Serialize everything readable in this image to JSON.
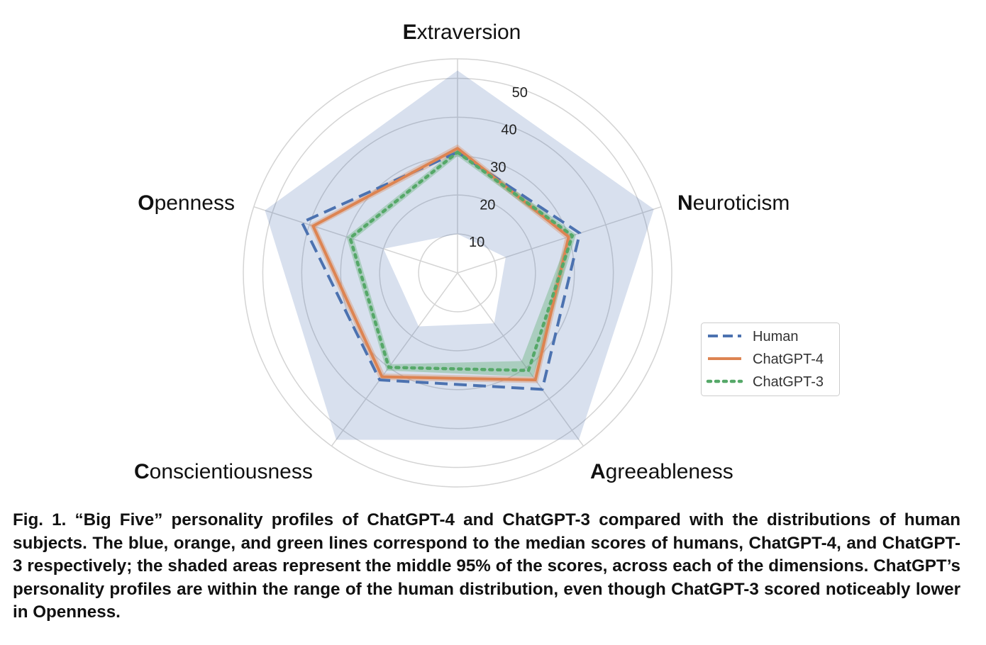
{
  "chart_data": {
    "type": "radar",
    "axes": [
      {
        "initial": "E",
        "rest": "xtraversion"
      },
      {
        "initial": "N",
        "rest": "euroticism"
      },
      {
        "initial": "A",
        "rest": "greeableness"
      },
      {
        "initial": "C",
        "rest": "onscientiousness"
      },
      {
        "initial": "O",
        "rest": "penness"
      }
    ],
    "r_ticks": [
      "10",
      "20",
      "30",
      "40",
      "50"
    ],
    "r_range": [
      0,
      55
    ],
    "grid": true,
    "legend_position": "right",
    "series": [
      {
        "name": "Human",
        "color": "#4c72b0",
        "style": "dashed",
        "median": [
          31,
          33,
          37,
          34,
          42
        ],
        "band_lower": [
          10,
          13,
          16,
          17,
          20
        ],
        "band_upper": [
          52,
          53,
          53,
          53,
          52
        ]
      },
      {
        "name": "ChatGPT-4",
        "color": "#dd8452",
        "style": "solid",
        "median": [
          32,
          30,
          34,
          33,
          39
        ],
        "band_lower": [
          31,
          29,
          33,
          32,
          38
        ],
        "band_upper": [
          33,
          31,
          35,
          34,
          40
        ]
      },
      {
        "name": "ChatGPT-3",
        "color": "#55a868",
        "style": "dotted",
        "median": [
          31,
          31,
          31,
          30,
          29
        ],
        "band_lower": [
          30,
          30,
          28,
          29,
          28
        ],
        "band_upper": [
          32,
          32,
          33,
          31,
          30
        ]
      }
    ]
  },
  "caption": "Fig. 1. “Big Five” personality profiles of ChatGPT-4 and ChatGPT-3 compared with the distributions of human subjects. The blue, orange, and green lines correspond to the median scores of humans, ChatGPT-4, and ChatGPT-3 respectively; the shaded areas represent the middle 95% of the scores, across each of the dimensions. ChatGPT’s personality profiles are within the range of the human distribution, even though ChatGPT-3 scored noticeably lower in Openness."
}
